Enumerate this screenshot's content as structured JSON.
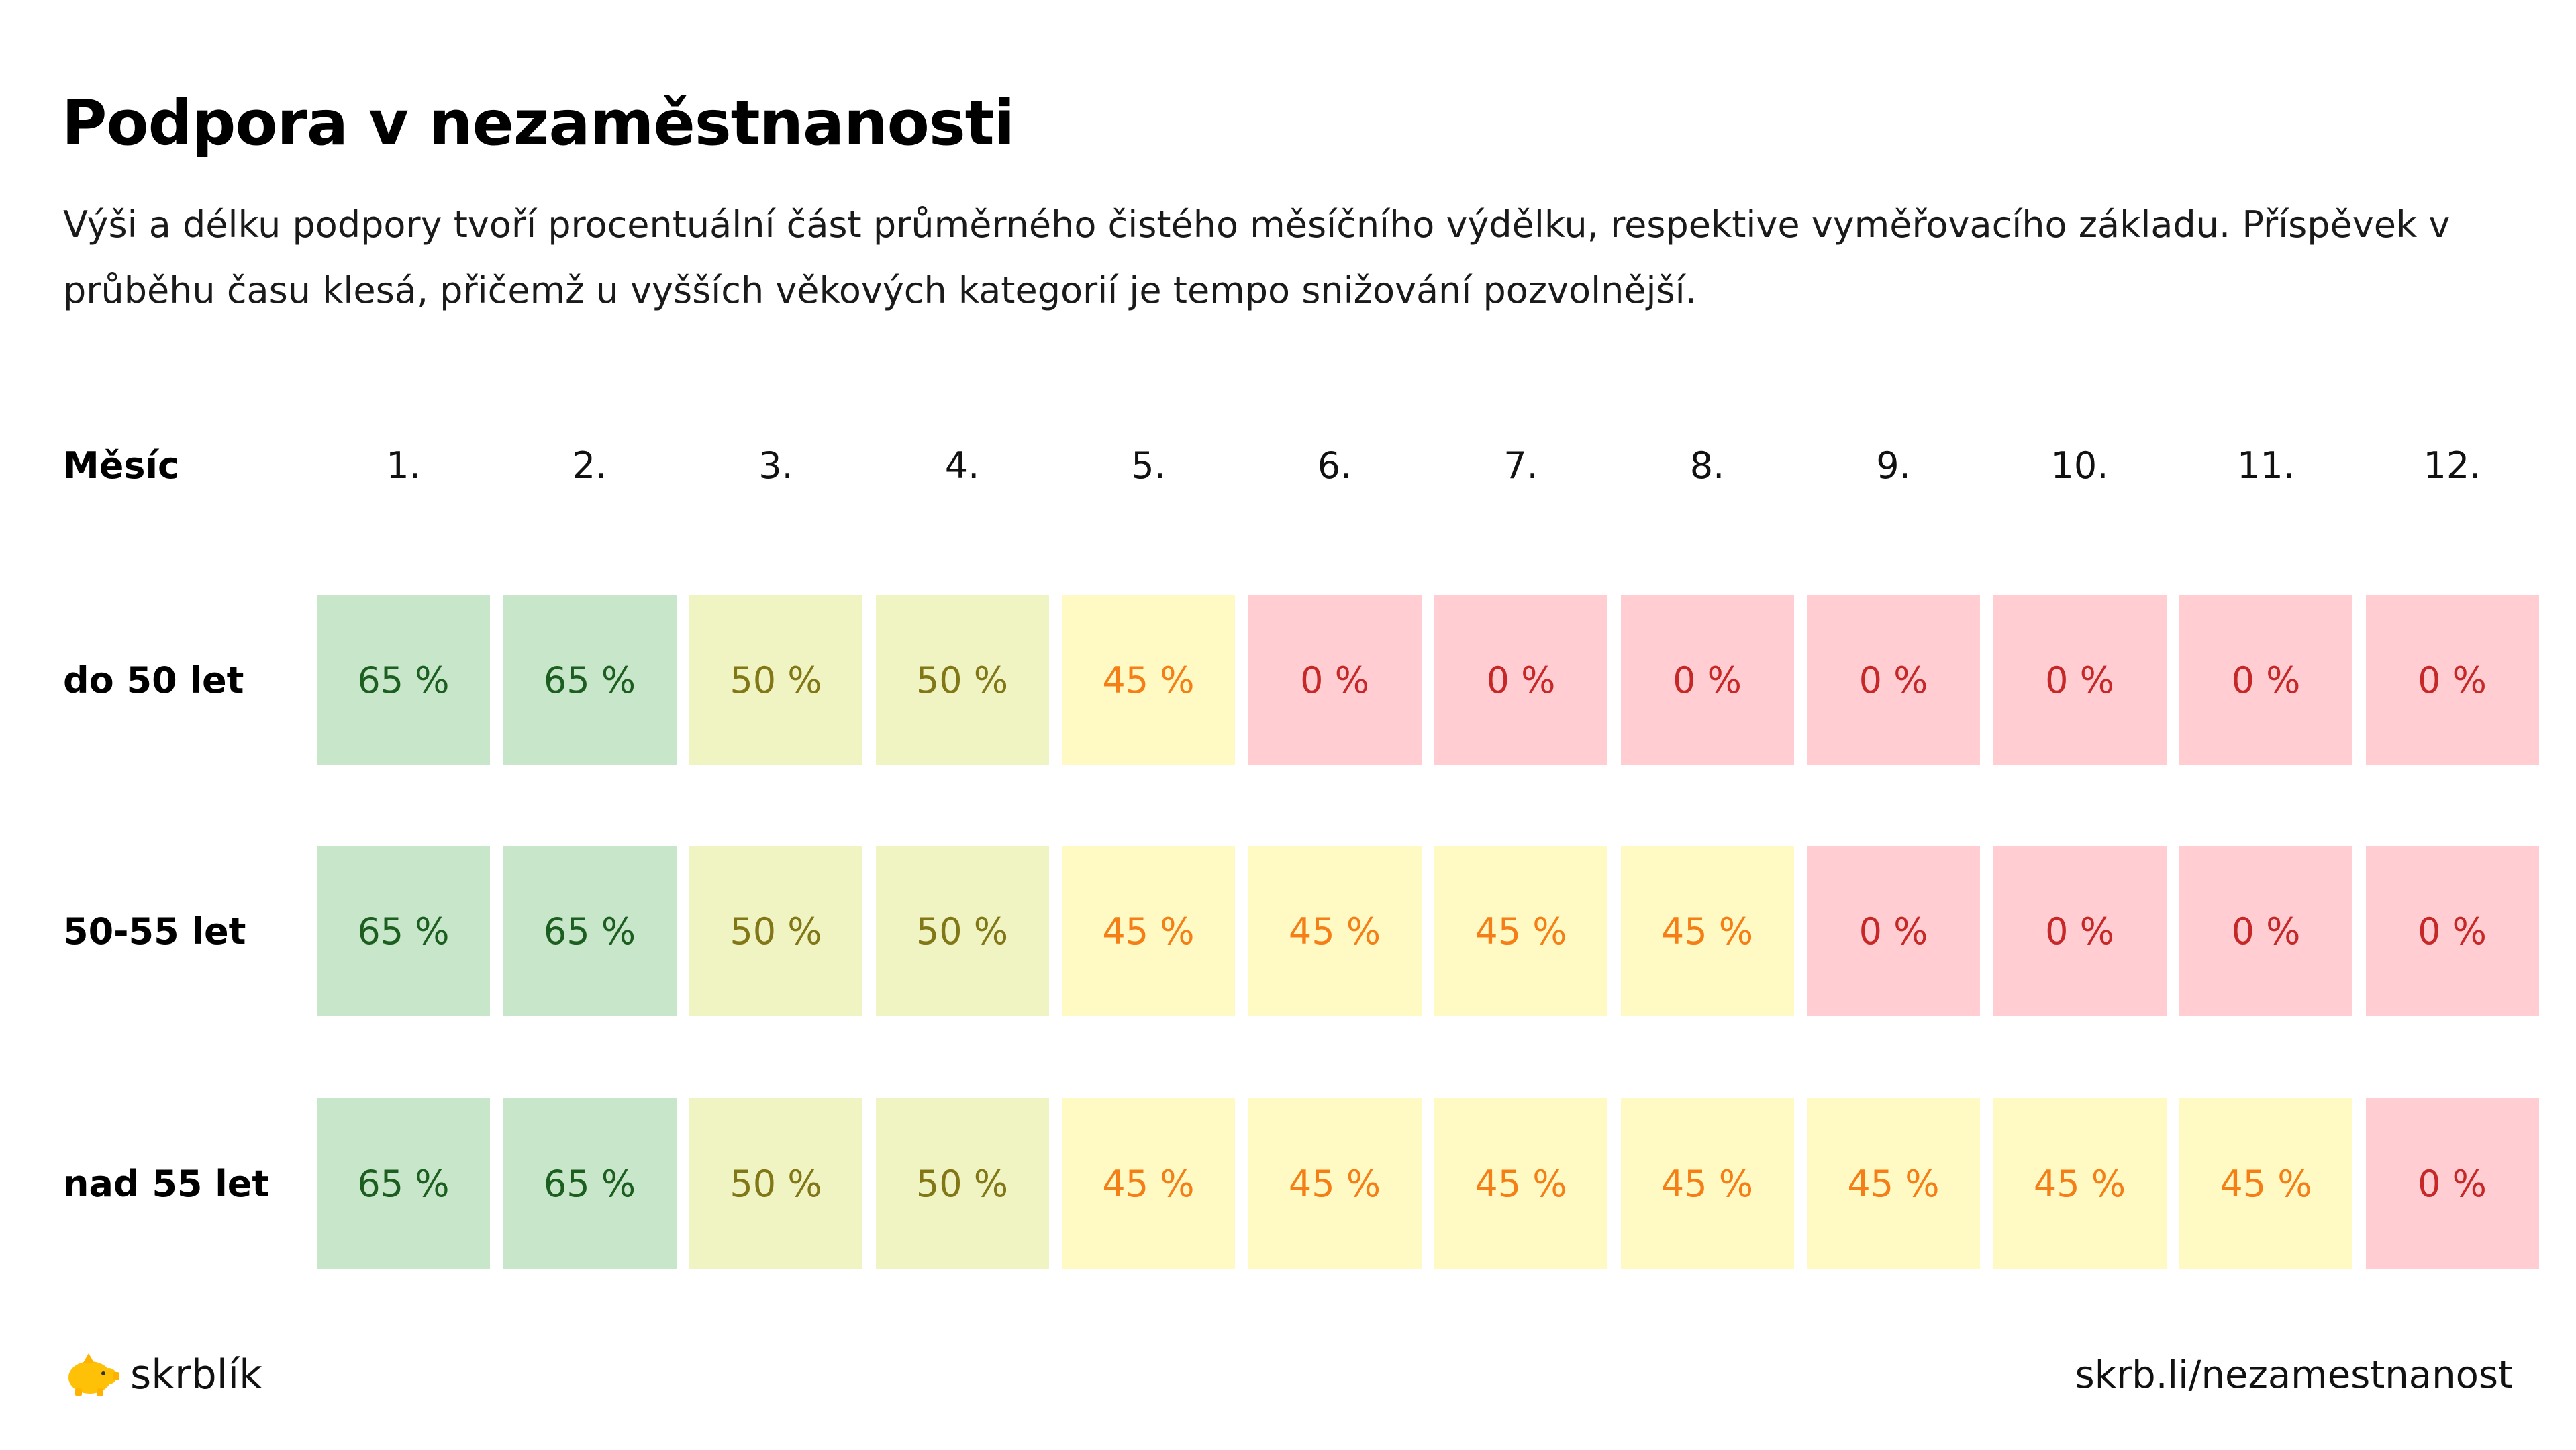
{
  "title": "Podpora v nezaměstnanosti",
  "subtitle": "Výši a délku podpory tvoří procentuální část průměrného čistého měsíčního výdělku, respektive vyměřovacího základu. Příspěvek v průběhu času klesá, přičemž u vyšších věkových kategorií je tempo snižování pozvolnější.",
  "header_label": "Měsíc",
  "months": [
    "1.",
    "2.",
    "3.",
    "4.",
    "5.",
    "6.",
    "7.",
    "8.",
    "9.",
    "10.",
    "11.",
    "12."
  ],
  "footer": {
    "brand": "skrblík",
    "url": "skrb.li/nezamestnanost"
  },
  "colors": {
    "65": {
      "bg": "#c8e6c9",
      "fg": "#1b5e20"
    },
    "50": {
      "bg": "#f0f4c3",
      "fg": "#827717"
    },
    "45": {
      "bg": "#fff9c4",
      "fg": "#f57f17"
    },
    "0": {
      "bg": "#ffcdd2",
      "fg": "#c62828"
    },
    "logo": "#ffc107"
  },
  "chart_data": {
    "type": "table",
    "title": "Podpora v nezaměstnanosti",
    "columns": [
      "1.",
      "2.",
      "3.",
      "4.",
      "5.",
      "6.",
      "7.",
      "8.",
      "9.",
      "10.",
      "11.",
      "12."
    ],
    "rows": [
      {
        "label": "do 50 let",
        "values": [
          65,
          65,
          50,
          50,
          45,
          0,
          0,
          0,
          0,
          0,
          0,
          0
        ]
      },
      {
        "label": "50-55 let",
        "values": [
          65,
          65,
          50,
          50,
          45,
          45,
          45,
          45,
          0,
          0,
          0,
          0
        ]
      },
      {
        "label": "nad 55 let",
        "values": [
          65,
          65,
          50,
          50,
          45,
          45,
          45,
          45,
          45,
          45,
          45,
          0
        ]
      }
    ],
    "unit": "%"
  }
}
